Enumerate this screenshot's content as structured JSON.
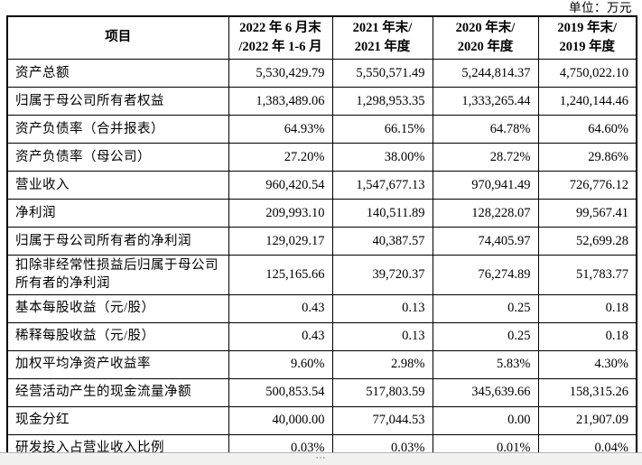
{
  "unit_label": "单位：万元",
  "scrollbar": {
    "handle_glyph": "···"
  },
  "chart_data": {
    "type": "table",
    "title": "主要财务数据摘要",
    "unit": "万元",
    "columns": [
      "项目",
      "2022 年 6 月末 /2022 年 1-6 月",
      "2021 年末/ 2021 年度",
      "2020 年末/ 2020 年度",
      "2019 年末/ 2019 年度"
    ]
  },
  "table": {
    "header": {
      "item_col": "项目",
      "period_cols": [
        {
          "line1": "2022 年 6 月末",
          "line2": "/2022 年 1-6 月"
        },
        {
          "line1": "2021 年末/",
          "line2": "2021 年度"
        },
        {
          "line1": "2020 年末/",
          "line2": "2020 年度"
        },
        {
          "line1": "2019 年末/",
          "line2": "2019 年度"
        }
      ]
    },
    "rows": [
      {
        "label": "资产总额",
        "values": [
          "5,530,429.79",
          "5,550,571.49",
          "5,244,814.37",
          "4,750,022.10"
        ]
      },
      {
        "label": "归属于母公司所有者权益",
        "values": [
          "1,383,489.06",
          "1,298,953.35",
          "1,333,265.44",
          "1,240,144.46"
        ]
      },
      {
        "label": "资产负债率（合并报表）",
        "values": [
          "64.93%",
          "66.15%",
          "64.78%",
          "64.60%"
        ]
      },
      {
        "label": "资产负债率（母公司）",
        "values": [
          "27.20%",
          "38.00%",
          "28.72%",
          "29.86%"
        ]
      },
      {
        "label": "营业收入",
        "values": [
          "960,420.54",
          "1,547,677.13",
          "970,941.49",
          "726,776.12"
        ]
      },
      {
        "label": "净利润",
        "values": [
          "209,993.10",
          "140,511.89",
          "128,228.07",
          "99,567.41"
        ]
      },
      {
        "label": "归属于母公司所有者的净利润",
        "values": [
          "129,029.17",
          "40,387.57",
          "74,405.97",
          "52,699.28"
        ]
      },
      {
        "label": "扣除非经常性损益后归属于母公司所有者的净利润",
        "values": [
          "125,165.66",
          "39,720.37",
          "76,274.89",
          "51,783.77"
        ]
      },
      {
        "label": "基本每股收益（元/股）",
        "values": [
          "0.43",
          "0.13",
          "0.25",
          "0.18"
        ]
      },
      {
        "label": "稀释每股收益（元/股）",
        "values": [
          "0.43",
          "0.13",
          "0.25",
          "0.18"
        ]
      },
      {
        "label": "加权平均净资产收益率",
        "values": [
          "9.60%",
          "2.98%",
          "5.83%",
          "4.30%"
        ]
      },
      {
        "label": "经营活动产生的现金流量净额",
        "values": [
          "500,853.54",
          "517,803.59",
          "345,639.66",
          "158,315.26"
        ]
      },
      {
        "label": "现金分红",
        "values": [
          "40,000.00",
          "77,044.53",
          "0.00",
          "21,907.09"
        ]
      },
      {
        "label": "研发投入占营业收入比例",
        "values": [
          "0.03%",
          "0.03%",
          "0.01%",
          "0.04%"
        ]
      }
    ]
  }
}
